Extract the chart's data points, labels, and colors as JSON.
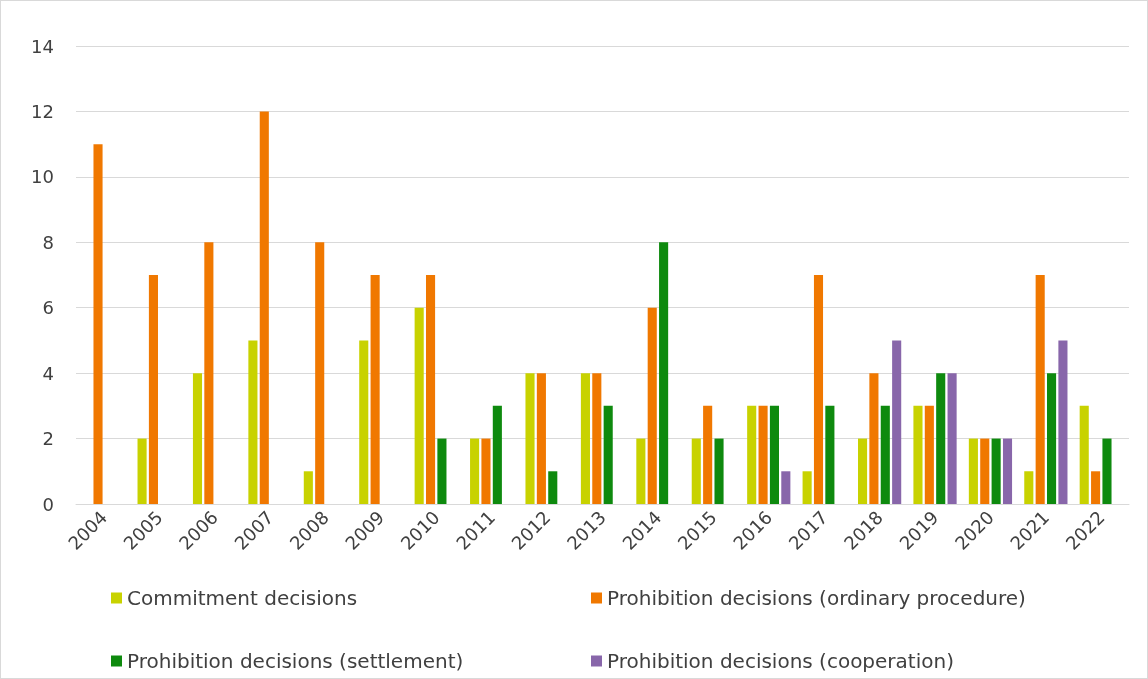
{
  "chart_data": {
    "type": "bar",
    "categories": [
      "2004",
      "2005",
      "2006",
      "2007",
      "2008",
      "2009",
      "2010",
      "2011",
      "2012",
      "2013",
      "2014",
      "2015",
      "2016",
      "2017",
      "2018",
      "2019",
      "2020",
      "2021",
      "2022"
    ],
    "series": [
      {
        "name": "Commitment decisions",
        "color": "#c8d200",
        "values": [
          null,
          2,
          4,
          5,
          1,
          5,
          6,
          2,
          4,
          4,
          2,
          2,
          3,
          1,
          2,
          3,
          2,
          1,
          3
        ]
      },
      {
        "name": "Prohibition decisions (ordinary procedure)",
        "color": "#f07800",
        "values": [
          11,
          7,
          8,
          12,
          8,
          7,
          7,
          2,
          4,
          4,
          6,
          3,
          3,
          7,
          4,
          3,
          2,
          7,
          1
        ]
      },
      {
        "name": "Prohibition decisions (settlement)",
        "color": "#0e8a0e",
        "values": [
          null,
          null,
          null,
          null,
          null,
          null,
          2,
          3,
          1,
          3,
          8,
          2,
          3,
          3,
          3,
          4,
          2,
          4,
          2
        ]
      },
      {
        "name": "Prohibition decisions (cooperation)",
        "color": "#8866aa",
        "values": [
          null,
          null,
          null,
          null,
          null,
          null,
          null,
          null,
          null,
          null,
          null,
          null,
          1,
          null,
          5,
          4,
          2,
          5,
          null
        ]
      }
    ],
    "ylim": [
      0,
      14
    ],
    "yticks": [
      0,
      2,
      4,
      6,
      8,
      10,
      12,
      14
    ],
    "grid": "y",
    "legend": "bottom"
  }
}
